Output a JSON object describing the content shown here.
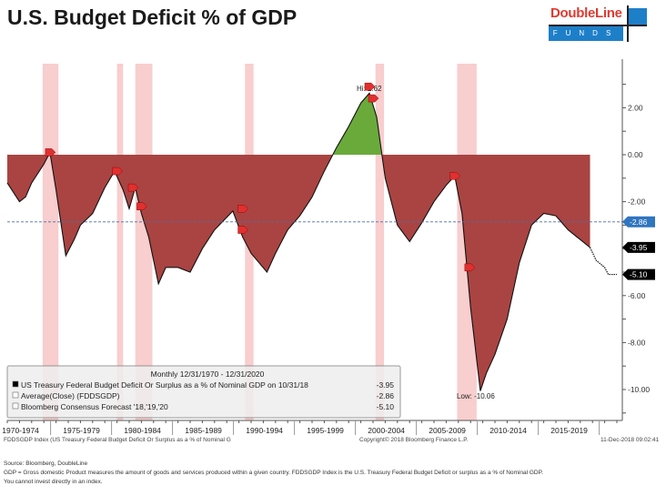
{
  "title": "U.S. Budget Deficit % of GDP",
  "logo": {
    "line1": "DoubleLine",
    "line2": "FUNDS"
  },
  "chart_data": {
    "type": "area",
    "title": "U.S. Budget Deficit % of GDP",
    "xlabel": "",
    "ylabel": "",
    "ylim": [
      -10.6,
      3.9
    ],
    "yticks": [
      2,
      0,
      -2,
      -4,
      -6,
      -8,
      -10
    ],
    "ytick_labels": [
      "2.00",
      "0.00",
      "-2.00",
      "",
      "-6.00",
      "-8.00",
      "-10.00"
    ],
    "xtick_labels": [
      "1970-1974",
      "1975-1979",
      "1980-1984",
      "1985-1989",
      "1990-1994",
      "1995-1999",
      "2000-2004",
      "2005-2009",
      "2010-2014",
      "2015-2019"
    ],
    "x_start_year": 1971,
    "series": [
      {
        "name": "US Treasury Federal Budget Deficit Or Surplus as a % of Nominal GDP",
        "data": [
          [
            1971,
            -1.2
          ],
          [
            1972,
            -2.0
          ],
          [
            1972.5,
            -1.8
          ],
          [
            1973,
            -1.2
          ],
          [
            1974,
            -0.4
          ],
          [
            1974.5,
            0.1
          ],
          [
            1975,
            -1.5
          ],
          [
            1975.8,
            -4.3
          ],
          [
            1976.5,
            -3.6
          ],
          [
            1977,
            -3.0
          ],
          [
            1978,
            -2.5
          ],
          [
            1979,
            -1.4
          ],
          [
            1979.8,
            -0.7
          ],
          [
            1980.5,
            -1.5
          ],
          [
            1981,
            -2.3
          ],
          [
            1981.5,
            -1.4
          ],
          [
            1982,
            -2.5
          ],
          [
            1982.6,
            -3.5
          ],
          [
            1983.4,
            -5.5
          ],
          [
            1984,
            -4.8
          ],
          [
            1985,
            -4.8
          ],
          [
            1986,
            -5.0
          ],
          [
            1987,
            -4.0
          ],
          [
            1988,
            -3.2
          ],
          [
            1989.5,
            -2.4
          ],
          [
            1990.3,
            -3.5
          ],
          [
            1991,
            -4.2
          ],
          [
            1992.3,
            -5.0
          ],
          [
            1993,
            -4.2
          ],
          [
            1994,
            -3.2
          ],
          [
            1995,
            -2.6
          ],
          [
            1996,
            -1.8
          ],
          [
            1997,
            -0.7
          ],
          [
            1998,
            0.3
          ],
          [
            1999,
            1.2
          ],
          [
            2000,
            2.2
          ],
          [
            2000.7,
            2.62
          ],
          [
            2001.3,
            1.6
          ],
          [
            2002,
            -1.0
          ],
          [
            2003,
            -3.0
          ],
          [
            2004,
            -3.7
          ],
          [
            2005,
            -2.9
          ],
          [
            2006,
            -2.0
          ],
          [
            2007,
            -1.3
          ],
          [
            2007.7,
            -0.9
          ],
          [
            2008.3,
            -2.5
          ],
          [
            2009,
            -6.5
          ],
          [
            2009.8,
            -10.06
          ],
          [
            2010.3,
            -9.3
          ],
          [
            2011,
            -8.5
          ],
          [
            2012,
            -7.0
          ],
          [
            2013,
            -4.6
          ],
          [
            2014,
            -3.0
          ],
          [
            2015,
            -2.5
          ],
          [
            2016,
            -2.6
          ],
          [
            2017,
            -3.2
          ],
          [
            2018.8,
            -3.95
          ]
        ]
      },
      {
        "name": "Bloomberg Consensus Forecast '18,'19,'20",
        "data": [
          [
            2018.8,
            -3.95
          ],
          [
            2019.3,
            -4.5
          ],
          [
            2020,
            -4.8
          ],
          [
            2020.3,
            -5.1
          ],
          [
            2021,
            -5.1
          ]
        ]
      }
    ],
    "average": -2.86,
    "recessions": [
      [
        1973.9,
        1975.2
      ],
      [
        1980.0,
        1980.5
      ],
      [
        1981.5,
        1982.9
      ],
      [
        1990.5,
        1991.2
      ],
      [
        2001.2,
        2001.9
      ],
      [
        2007.9,
        2009.5
      ]
    ],
    "annotations": {
      "high": "Hi: 2.62",
      "low": "Low: -10.06"
    },
    "last_labels": {
      "average": "-2.86",
      "last": "-3.95",
      "forecast": "-5.10"
    },
    "colors": {
      "deficit": "#a94442",
      "surplus": "#6aaa3a",
      "recession": "#f7c6c6",
      "average": "#4a6fa5",
      "avg_badge": "#2f75c0"
    },
    "legend": {
      "header": "Monthly 12/31/1970 - 12/31/2020",
      "rows": [
        {
          "label": "US Treasury Federal Budget Deficit Or Surplus as a % of Nominal GDP  on 10/31/18",
          "value": "-3.95"
        },
        {
          "label": "Average(Close) (FDDSGDP)",
          "value": "-2.86"
        },
        {
          "label": "Bloomberg Consensus Forecast '18,'19,'20",
          "value": "-5.10"
        }
      ]
    }
  },
  "footer": {
    "left": "FDDSGDP Index (US Treasury Federal Budget Deficit Or Surplus as a % of Nominal G",
    "center": "Copyright© 2018 Bloomberg Finance L.P.",
    "right": "11-Dec-2018 09:02:41"
  },
  "source": [
    "Source: Bloomberg, DoubleLine",
    "GDP = Gross domestic Product measures the amount of goods and services produced within a given country. FDDSGDP Index is the U.S. Treasury Federal Budget Deficit or surplus as a % of  Nominal GDP.",
    "You cannot invest directly in an index."
  ]
}
